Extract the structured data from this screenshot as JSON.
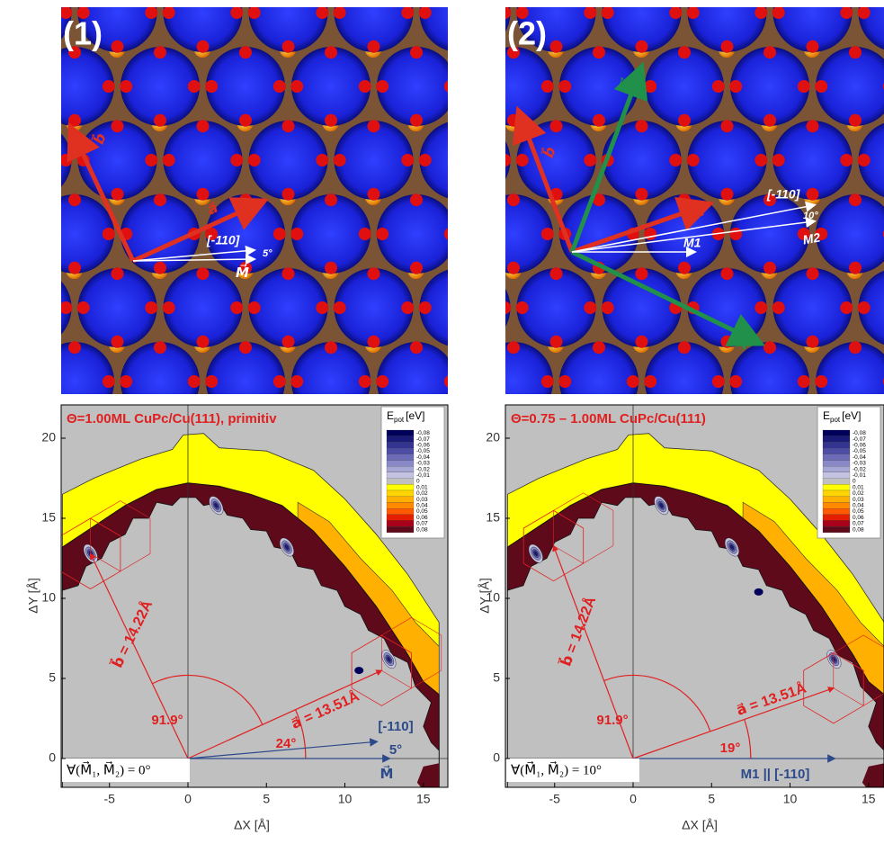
{
  "panels": [
    {
      "label": "(1)",
      "image_labels": [
        "b⃗",
        "a⃗",
        "[-110]",
        "5°",
        "M⃗"
      ],
      "plot": {
        "title": "Θ=1.00ML CuPc/Cu(111), primitiv",
        "legend_title": {
          "symbol": "E",
          "subscript": "pot",
          "unit": "[eV]"
        },
        "annotations": [
          "b⃗ = 14.22Å",
          "a⃗ = 13.51Å",
          "91.9°",
          "24°",
          "[-110]",
          "5°",
          "M⃗"
        ],
        "formula": "∀(M⃗₁, M⃗₂) = 0°",
        "x_label": "ΔX [Å]",
        "y_label": "ΔY [Å]",
        "xticks": [
          -5,
          0,
          5,
          10,
          15
        ],
        "yticks": [
          0,
          5,
          10,
          15,
          20
        ]
      }
    },
    {
      "label": "(2)",
      "image_labels": [
        "B⃗",
        "b⃗",
        "a⃗",
        "[-110]",
        "10°",
        "M1",
        "M2",
        "A⃗"
      ],
      "plot": {
        "title": "Θ=0.75 – 1.00ML CuPc/Cu(111)",
        "legend_title": {
          "symbol": "E",
          "subscript": "pot",
          "unit": "[eV]"
        },
        "annotations": [
          "b⃗ = 14.22Å",
          "a⃗ = 13.51Å",
          "91.9°",
          "19°",
          "M1 || [-110]"
        ],
        "formula": "∀(M⃗₁, M⃗₂) = 10°",
        "x_label": "ΔX [Å]",
        "y_label": "ΔY [Å]",
        "xticks": [
          -5,
          0,
          5,
          10,
          15
        ],
        "yticks": [
          0,
          5,
          10,
          15,
          20
        ]
      }
    }
  ],
  "legend_levels": [
    "-0,08",
    "-0,07",
    "-0,06",
    "-0,05",
    "-0,04",
    "-0,03",
    "-0,02",
    "-0,01",
    "0",
    "0,01",
    "0,02",
    "0,03",
    "0,04",
    "0,05",
    "0,06",
    "0,07",
    "0,08"
  ],
  "legend_colors": [
    "#00005a",
    "#1a1a78",
    "#333390",
    "#4d4da6",
    "#6b6bb8",
    "#8989c8",
    "#a7a7d6",
    "#c4c4e2",
    "#c0c0c0",
    "#ffff00",
    "#ffd400",
    "#ffb000",
    "#ff8a00",
    "#ff5a00",
    "#e61e00",
    "#a8001a",
    "#5e0a1a"
  ]
}
